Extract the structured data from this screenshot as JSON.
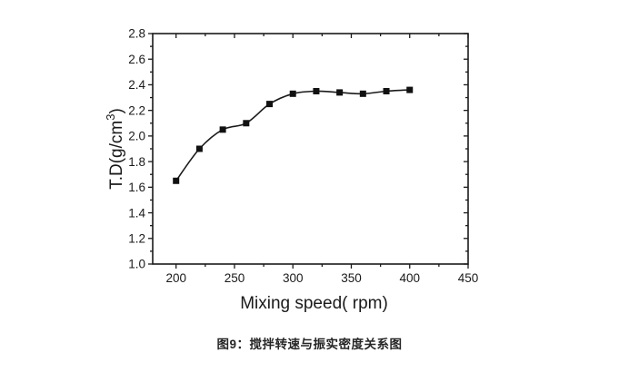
{
  "figure": {
    "caption": "图9：搅拌转速与振实密度关系图"
  },
  "chart_data": {
    "type": "line",
    "title": "",
    "xlabel": "Mixing speed(  rpm)",
    "ylabel": "T.D(g/cm³)",
    "ylabel_parts": {
      "base": "T.D(g/cm",
      "sup": "3",
      "close": ")"
    },
    "x": [
      200,
      220,
      240,
      260,
      280,
      300,
      320,
      340,
      360,
      380,
      400
    ],
    "y": [
      1.65,
      1.9,
      2.05,
      2.1,
      2.25,
      2.33,
      2.35,
      2.34,
      2.33,
      2.35,
      2.36
    ],
    "xlim": [
      180,
      450
    ],
    "ylim": [
      1.0,
      2.8
    ],
    "xtick_values": [
      200,
      250,
      300,
      350,
      400,
      450
    ],
    "xtick_labels": [
      "200",
      "250",
      "300",
      "350",
      "400",
      "450"
    ],
    "ytick_values": [
      1.0,
      1.2,
      1.4,
      1.6,
      1.8,
      2.0,
      2.2,
      2.4,
      2.6,
      2.8
    ],
    "ytick_labels": [
      "1.0",
      "1.2",
      "1.4",
      "1.6",
      "1.8",
      "2.0",
      "2.2",
      "2.4",
      "2.6",
      "2.8"
    ],
    "x_minor_step": 25,
    "y_minor_step": 0.1,
    "marker": "square",
    "line_color": "#1a1a1a",
    "marker_color": "#111111",
    "axis_color": "#1a1a1a",
    "grid": false,
    "legend": "none"
  }
}
